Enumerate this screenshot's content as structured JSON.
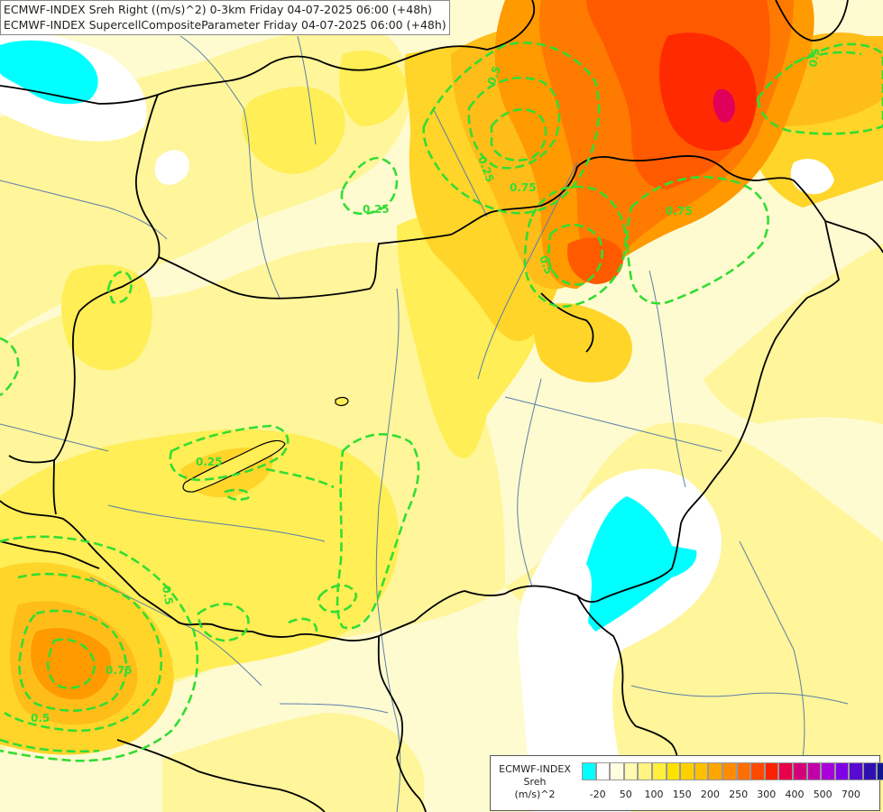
{
  "header": {
    "line1": "ECMWF-INDEX Sreh Right ((m/s)^2) 0-3km Friday 04-07-2025 06:00 (+48h)",
    "line2": "ECMWF-INDEX SupercellCompositeParameter Friday 04-07-2025 06:00 (+48h)"
  },
  "contour_labels": [
    {
      "id": "l1",
      "text": "0.25"
    },
    {
      "id": "l2",
      "text": "0.5"
    },
    {
      "id": "l3",
      "text": "0.75"
    },
    {
      "id": "l4",
      "text": "0.25"
    },
    {
      "id": "l5",
      "text": "0.5"
    },
    {
      "id": "l6",
      "text": "0.75"
    },
    {
      "id": "l7",
      "text": "0.25"
    },
    {
      "id": "l8",
      "text": "0.5"
    },
    {
      "id": "l9",
      "text": "0.75"
    },
    {
      "id": "l10",
      "text": "0.5"
    },
    {
      "id": "l11",
      "text": "0.5"
    }
  ],
  "legend": {
    "title_line1": "ECMWF-INDEX",
    "title_line2": "Sreh",
    "title_line3": "(m/s)^2",
    "colors": [
      "#00ffff",
      "#ffffff",
      "#fffde0",
      "#fffab0",
      "#fff580",
      "#ffef3f",
      "#ffe200",
      "#ffd000",
      "#ffbf00",
      "#ffa500",
      "#ff8c00",
      "#ff6f00",
      "#ff4a00",
      "#ff2000",
      "#e8004a",
      "#d4007a",
      "#c000a8",
      "#a800d8",
      "#8000e6",
      "#5a0ad0",
      "#3010b0",
      "#101890"
    ],
    "ticks": [
      "-20",
      "50",
      "100",
      "150",
      "200",
      "250",
      "300",
      "400",
      "500",
      "700"
    ],
    "tick_swatch_index": [
      1,
      3,
      5,
      7,
      9,
      11,
      13,
      15,
      17,
      19
    ]
  },
  "map_colors": {
    "pale": "#fffbd0",
    "light_yellow": "#fff59a",
    "yellow": "#ffee55",
    "gold": "#ffd52a",
    "orange_light": "#ffbd1a",
    "orange": "#ff9a00",
    "orange_dark": "#ff7a00",
    "red_orange": "#ff5a00",
    "red": "#ff2a00",
    "magenta": "#e0005a",
    "cyan": "#00ffff",
    "white": "#ffffff",
    "contour": "#33dd33",
    "border": "#000000",
    "river": "#5b7ea8"
  }
}
